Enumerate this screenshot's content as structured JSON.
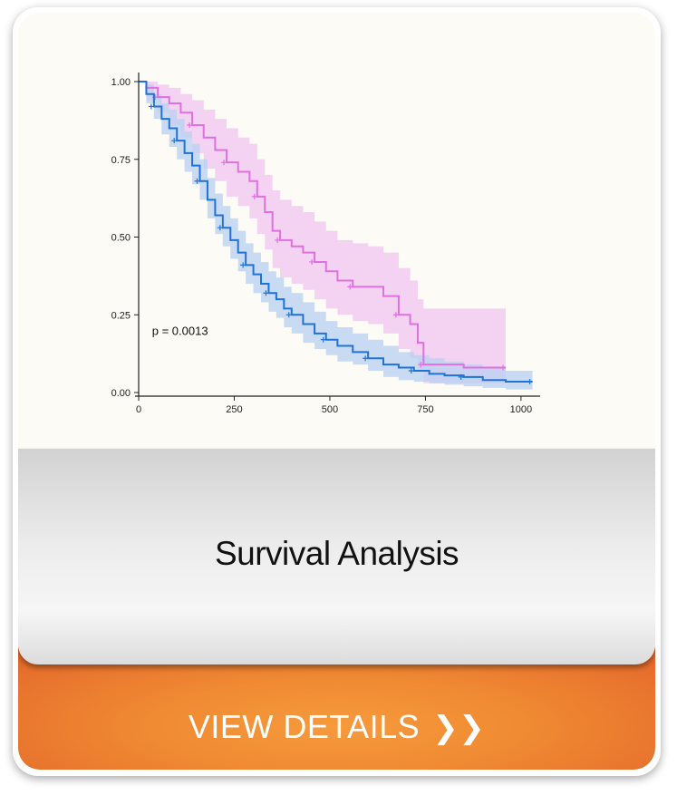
{
  "card": {
    "title": "Survival Analysis",
    "cta_label": "VIEW DETAILS",
    "cta_icon": "double-chevron-right-icon",
    "cta_glyph": "❯❯"
  },
  "chart_data": {
    "type": "line",
    "subtype": "kaplan-meier",
    "title": "",
    "xlabel": "",
    "ylabel": "",
    "xlim": [
      0,
      1050
    ],
    "ylim": [
      0,
      1.0
    ],
    "xticks": [
      0,
      250,
      500,
      750,
      1000
    ],
    "yticks": [
      0.0,
      0.25,
      0.5,
      0.75,
      1.0
    ],
    "xtick_labels": [
      "0",
      "250",
      "500",
      "750",
      "1000"
    ],
    "ytick_labels": [
      "0.00",
      "0.25",
      "0.50",
      "0.75",
      "1.00"
    ],
    "grid": false,
    "annotation": "p = 0.0013",
    "series": [
      {
        "color": "#e070df",
        "band_color": "#f2c4f0",
        "x": [
          0,
          20,
          50,
          80,
          110,
          140,
          170,
          200,
          230,
          260,
          290,
          310,
          330,
          350,
          370,
          400,
          430,
          460,
          490,
          520,
          560,
          600,
          640,
          680,
          710,
          730,
          745,
          780,
          850,
          960
        ],
        "y": [
          1.0,
          0.98,
          0.95,
          0.93,
          0.9,
          0.86,
          0.82,
          0.78,
          0.74,
          0.71,
          0.68,
          0.63,
          0.58,
          0.52,
          0.49,
          0.47,
          0.45,
          0.42,
          0.39,
          0.36,
          0.34,
          0.34,
          0.31,
          0.25,
          0.22,
          0.16,
          0.09,
          0.09,
          0.08,
          0.08
        ],
        "lower": [
          1.0,
          0.94,
          0.9,
          0.86,
          0.82,
          0.77,
          0.72,
          0.68,
          0.63,
          0.6,
          0.56,
          0.51,
          0.46,
          0.4,
          0.37,
          0.35,
          0.33,
          0.3,
          0.27,
          0.25,
          0.23,
          0.22,
          0.19,
          0.14,
          0.11,
          0.07,
          0.03,
          0.03,
          0.03,
          0.03
        ],
        "upper": [
          1.0,
          1.0,
          0.99,
          0.98,
          0.96,
          0.94,
          0.91,
          0.88,
          0.85,
          0.82,
          0.8,
          0.75,
          0.7,
          0.65,
          0.62,
          0.6,
          0.58,
          0.55,
          0.52,
          0.49,
          0.48,
          0.47,
          0.45,
          0.4,
          0.36,
          0.3,
          0.27,
          0.27,
          0.27,
          0.27
        ]
      },
      {
        "color": "#1e73d8",
        "band_color": "#b8d0f2",
        "x": [
          0,
          20,
          40,
          60,
          80,
          100,
          120,
          140,
          160,
          180,
          200,
          220,
          240,
          260,
          280,
          300,
          320,
          340,
          360,
          380,
          400,
          430,
          460,
          490,
          520,
          560,
          600,
          640,
          680,
          720,
          760,
          800,
          850,
          900,
          960,
          1030
        ],
        "y": [
          1.0,
          0.96,
          0.92,
          0.88,
          0.85,
          0.81,
          0.77,
          0.73,
          0.68,
          0.62,
          0.57,
          0.53,
          0.49,
          0.45,
          0.41,
          0.38,
          0.35,
          0.32,
          0.3,
          0.27,
          0.25,
          0.22,
          0.19,
          0.17,
          0.15,
          0.13,
          0.11,
          0.09,
          0.08,
          0.07,
          0.06,
          0.055,
          0.05,
          0.04,
          0.035,
          0.035
        ],
        "lower": [
          1.0,
          0.93,
          0.88,
          0.83,
          0.79,
          0.75,
          0.71,
          0.67,
          0.62,
          0.56,
          0.51,
          0.47,
          0.43,
          0.39,
          0.35,
          0.32,
          0.29,
          0.26,
          0.24,
          0.21,
          0.19,
          0.16,
          0.14,
          0.12,
          0.1,
          0.09,
          0.07,
          0.05,
          0.04,
          0.035,
          0.03,
          0.025,
          0.02,
          0.015,
          0.01,
          0.01
        ],
        "upper": [
          1.0,
          0.99,
          0.96,
          0.93,
          0.91,
          0.88,
          0.84,
          0.8,
          0.75,
          0.69,
          0.64,
          0.6,
          0.56,
          0.52,
          0.48,
          0.45,
          0.42,
          0.39,
          0.37,
          0.34,
          0.32,
          0.29,
          0.26,
          0.23,
          0.21,
          0.19,
          0.17,
          0.15,
          0.13,
          0.12,
          0.11,
          0.1,
          0.09,
          0.08,
          0.07,
          0.07
        ]
      }
    ]
  }
}
